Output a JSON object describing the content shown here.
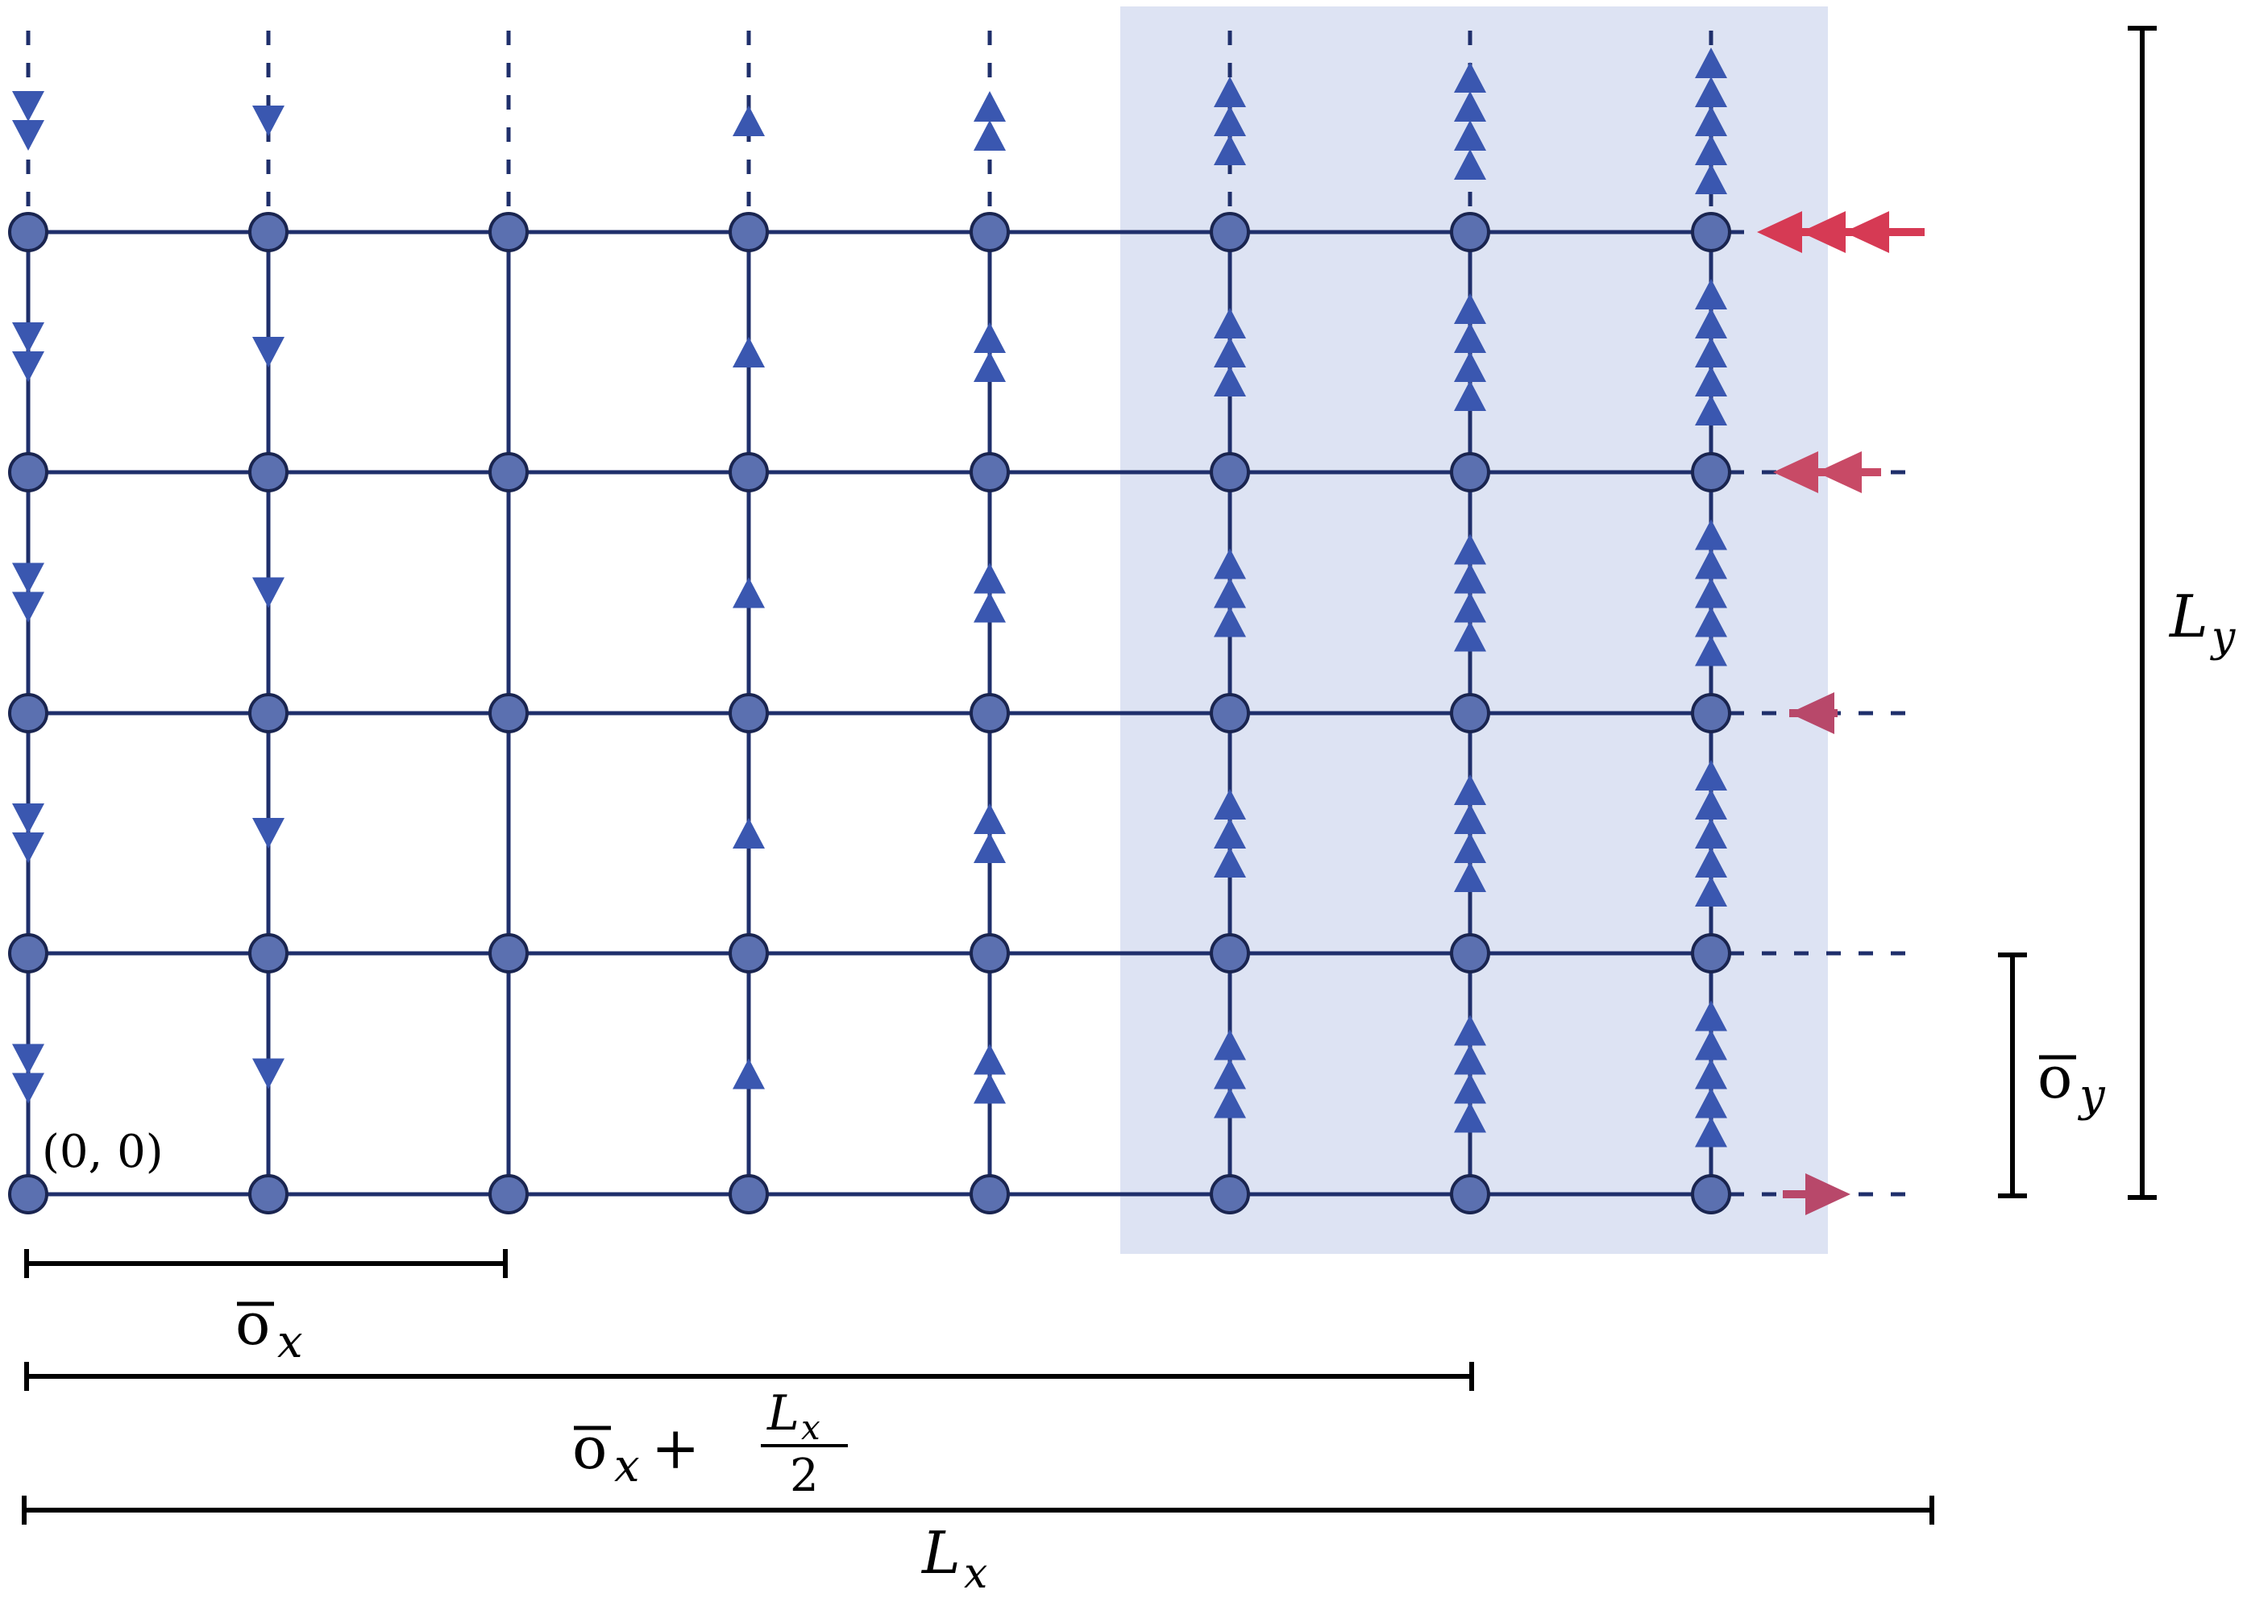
{
  "lattice": {
    "columns": 8,
    "rows": 5,
    "origin_label": "(0, 0)",
    "node_color": "#5b70b0",
    "line_color": "#1f2f6b",
    "vertical_arrow_color": "#3a57b0",
    "shaded_region_color": "#dde3f3",
    "shaded_columns": [
      5,
      6,
      7
    ],
    "column_flux": [
      -2,
      -1,
      0,
      1,
      2,
      3,
      4,
      5
    ]
  },
  "boundary_arrows": {
    "colors": [
      "#d63a54",
      "#c84a66",
      "#b8486a"
    ],
    "row_counts": [
      3,
      2,
      1,
      0,
      -1
    ]
  },
  "labels": {
    "ox": {
      "main": "o",
      "sub": "x"
    },
    "ox_plus_half_lx": {
      "main": "o",
      "sub": "x",
      "plus": "+",
      "num_main": "L",
      "num_sub": "x",
      "den": "2"
    },
    "lx": {
      "main": "L",
      "sub": "x"
    },
    "oy": {
      "main": "o",
      "sub": "y"
    },
    "ly": {
      "main": "L",
      "sub": "y"
    }
  }
}
